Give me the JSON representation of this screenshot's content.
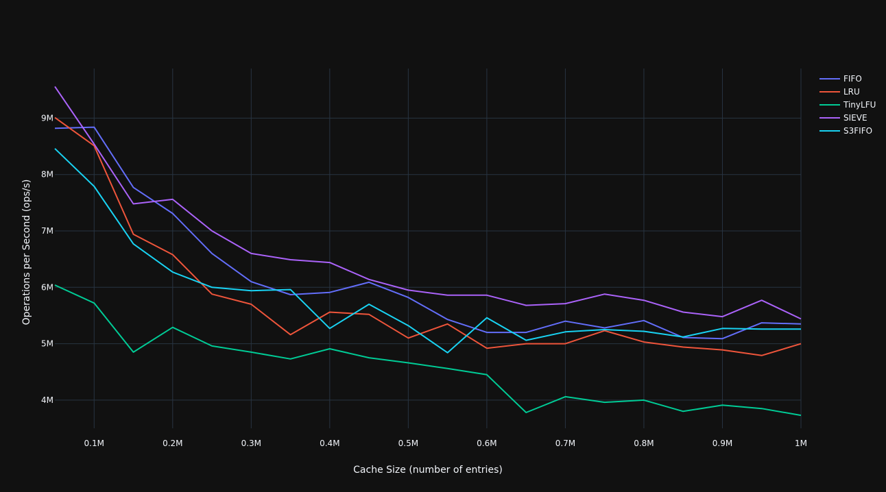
{
  "chart_data": {
    "type": "line",
    "xlabel": "Cache Size (number of entries)",
    "ylabel": "Operations per Second (ops/s)",
    "x": [
      50000,
      100000,
      150000,
      200000,
      250000,
      300000,
      350000,
      400000,
      450000,
      500000,
      550000,
      600000,
      650000,
      700000,
      750000,
      800000,
      850000,
      900000,
      950000,
      1000000
    ],
    "xlim": [
      50000,
      1000000
    ],
    "ylim": [
      3500000,
      9880000
    ],
    "x_ticks": [
      {
        "value": 100000,
        "label": "0.1M"
      },
      {
        "value": 200000,
        "label": "0.2M"
      },
      {
        "value": 300000,
        "label": "0.3M"
      },
      {
        "value": 400000,
        "label": "0.4M"
      },
      {
        "value": 500000,
        "label": "0.5M"
      },
      {
        "value": 600000,
        "label": "0.6M"
      },
      {
        "value": 700000,
        "label": "0.7M"
      },
      {
        "value": 800000,
        "label": "0.8M"
      },
      {
        "value": 900000,
        "label": "0.9M"
      },
      {
        "value": 1000000,
        "label": "1M"
      }
    ],
    "y_ticks": [
      {
        "value": 4000000,
        "label": "4M"
      },
      {
        "value": 5000000,
        "label": "5M"
      },
      {
        "value": 6000000,
        "label": "6M"
      },
      {
        "value": 7000000,
        "label": "7M"
      },
      {
        "value": 8000000,
        "label": "8M"
      },
      {
        "value": 9000000,
        "label": "9M"
      }
    ],
    "grid": true,
    "legend_position": "top-right",
    "series": [
      {
        "name": "FIFO",
        "color": "#636efa",
        "values": [
          8820000,
          8840000,
          7770000,
          7310000,
          6600000,
          6100000,
          5870000,
          5910000,
          6090000,
          5820000,
          5430000,
          5200000,
          5200000,
          5400000,
          5280000,
          5410000,
          5110000,
          5090000,
          5370000,
          5350000
        ]
      },
      {
        "name": "LRU",
        "color": "#ef553b",
        "values": [
          9010000,
          8510000,
          6940000,
          6580000,
          5880000,
          5700000,
          5160000,
          5560000,
          5520000,
          5100000,
          5350000,
          4920000,
          5000000,
          5000000,
          5230000,
          5030000,
          4940000,
          4890000,
          4790000,
          5000000
        ]
      },
      {
        "name": "TinyLFU",
        "color": "#00cc96",
        "values": [
          6040000,
          5720000,
          4850000,
          5290000,
          4960000,
          4850000,
          4730000,
          4910000,
          4750000,
          4660000,
          4560000,
          4450000,
          3780000,
          4060000,
          3960000,
          4000000,
          3800000,
          3910000,
          3850000,
          3730000
        ]
      },
      {
        "name": "SIEVE",
        "color": "#ab63fa",
        "values": [
          9560000,
          8540000,
          7480000,
          7560000,
          7000000,
          6600000,
          6490000,
          6440000,
          6140000,
          5950000,
          5860000,
          5860000,
          5680000,
          5710000,
          5880000,
          5770000,
          5560000,
          5480000,
          5770000,
          5440000
        ]
      },
      {
        "name": "S3FIFO",
        "color": "#19d3f3",
        "values": [
          8460000,
          7790000,
          6770000,
          6270000,
          6000000,
          5940000,
          5960000,
          5270000,
          5700000,
          5320000,
          4840000,
          5460000,
          5060000,
          5210000,
          5250000,
          5220000,
          5120000,
          5270000,
          5260000,
          5260000
        ]
      }
    ]
  }
}
